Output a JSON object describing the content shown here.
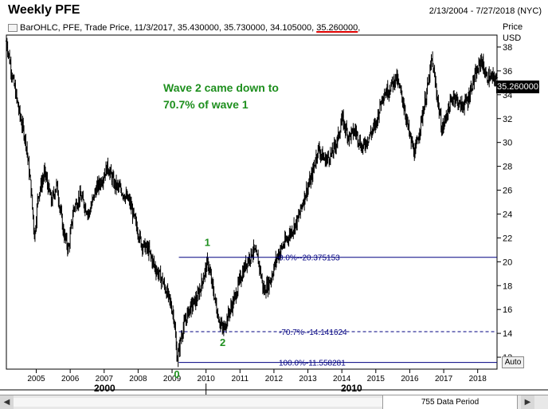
{
  "header": {
    "title": "Weekly PFE",
    "date_range": "2/13/2004 - 7/27/2018 (NYC)",
    "series_info": "BarOHLC, PFE, Trade Price, 11/3/2017, 35.430000, 35.730000, 34.105000, ",
    "last_close": "35.260000",
    "series_info_tail": ","
  },
  "axis": {
    "price_label": "Price",
    "currency_label": "USD",
    "current_price_tag": "35.260000",
    "auto_label": "Auto"
  },
  "annotation": {
    "line1": "Wave 2 came down to",
    "line2": "70.7% of wave 1"
  },
  "scrollbar": {
    "left_arrow": "◀",
    "right_arrow": "▶",
    "data_period_label": "755 Data Period"
  },
  "era_labels": [
    "2000",
    "2010"
  ],
  "colors": {
    "bars": "#000000",
    "annotation": "#1e8f1e",
    "fib_text": "#000080",
    "underline": "#e00000"
  },
  "chart_data": {
    "type": "ohlc",
    "ylim": [
      11,
      39
    ],
    "yticks": [
      12,
      14,
      16,
      18,
      20,
      22,
      24,
      26,
      28,
      30,
      32,
      34,
      36,
      38
    ],
    "xlim": [
      2004.12,
      2018.57
    ],
    "xticks": [
      "2005",
      "2006",
      "2007",
      "2008",
      "2009",
      "2010",
      "2011",
      "2012",
      "2013",
      "2014",
      "2015",
      "2016",
      "2017",
      "2018"
    ],
    "grid": false,
    "price_path": [
      [
        2004.12,
        38.5
      ],
      [
        2004.3,
        35.5
      ],
      [
        2004.5,
        32.5
      ],
      [
        2004.7,
        30.0
      ],
      [
        2004.85,
        26.0
      ],
      [
        2004.95,
        22.0
      ],
      [
        2005.05,
        25.5
      ],
      [
        2005.25,
        27.5
      ],
      [
        2005.45,
        25.0
      ],
      [
        2005.6,
        26.5
      ],
      [
        2005.8,
        22.5
      ],
      [
        2005.95,
        21.0
      ],
      [
        2006.1,
        24.5
      ],
      [
        2006.3,
        25.5
      ],
      [
        2006.55,
        24.0
      ],
      [
        2006.75,
        26.0
      ],
      [
        2006.95,
        27.0
      ],
      [
        2007.1,
        28.0
      ],
      [
        2007.3,
        26.5
      ],
      [
        2007.5,
        26.0
      ],
      [
        2007.75,
        25.0
      ],
      [
        2007.9,
        23.5
      ],
      [
        2008.1,
        21.5
      ],
      [
        2008.3,
        21.0
      ],
      [
        2008.5,
        19.5
      ],
      [
        2008.7,
        18.5
      ],
      [
        2008.9,
        17.0
      ],
      [
        2009.05,
        15.5
      ],
      [
        2009.15,
        11.8
      ],
      [
        2009.3,
        14.2
      ],
      [
        2009.5,
        16.0
      ],
      [
        2009.75,
        17.0
      ],
      [
        2009.95,
        19.0
      ],
      [
        2010.05,
        20.0
      ],
      [
        2010.15,
        18.5
      ],
      [
        2010.35,
        15.5
      ],
      [
        2010.5,
        14.2
      ],
      [
        2010.65,
        15.5
      ],
      [
        2010.85,
        17.0
      ],
      [
        2011.0,
        18.5
      ],
      [
        2011.2,
        20.0
      ],
      [
        2011.4,
        21.0
      ],
      [
        2011.55,
        20.0
      ],
      [
        2011.7,
        17.5
      ],
      [
        2011.9,
        18.5
      ],
      [
        2012.1,
        20.5
      ],
      [
        2012.3,
        21.5
      ],
      [
        2012.5,
        22.5
      ],
      [
        2012.7,
        23.5
      ],
      [
        2012.9,
        25.5
      ],
      [
        2013.1,
        27.0
      ],
      [
        2013.3,
        29.5
      ],
      [
        2013.5,
        28.5
      ],
      [
        2013.7,
        29.0
      ],
      [
        2013.9,
        30.5
      ],
      [
        2014.0,
        32.0
      ],
      [
        2014.2,
        30.5
      ],
      [
        2014.4,
        31.0
      ],
      [
        2014.6,
        29.5
      ],
      [
        2014.8,
        30.5
      ],
      [
        2015.0,
        31.5
      ],
      [
        2015.2,
        34.0
      ],
      [
        2015.4,
        34.5
      ],
      [
        2015.6,
        35.5
      ],
      [
        2015.8,
        33.5
      ],
      [
        2016.0,
        30.5
      ],
      [
        2016.15,
        29.0
      ],
      [
        2016.35,
        32.0
      ],
      [
        2016.55,
        35.0
      ],
      [
        2016.65,
        37.0
      ],
      [
        2016.8,
        34.0
      ],
      [
        2016.95,
        31.0
      ],
      [
        2017.1,
        32.5
      ],
      [
        2017.3,
        34.0
      ],
      [
        2017.5,
        33.0
      ],
      [
        2017.7,
        33.5
      ],
      [
        2017.85,
        35.0
      ],
      [
        2018.0,
        36.0
      ],
      [
        2018.1,
        37.0
      ],
      [
        2018.25,
        35.5
      ],
      [
        2018.57,
        35.3
      ]
    ],
    "wave_labels": [
      {
        "label": "0",
        "x": 2009.15,
        "y": 11.8
      },
      {
        "label": "1",
        "x": 2010.05,
        "y": 20.375153
      },
      {
        "label": "2",
        "x": 2010.5,
        "y": 14.141624
      }
    ],
    "fib_levels": [
      {
        "label": "0.0%--20.375153",
        "value": 20.375153
      },
      {
        "label": "-70.7%--14.141624",
        "value": 14.141624
      },
      {
        "label": "100.0%-11.558281",
        "value": 11.558281
      }
    ],
    "fib_x_start": 2009.2
  }
}
